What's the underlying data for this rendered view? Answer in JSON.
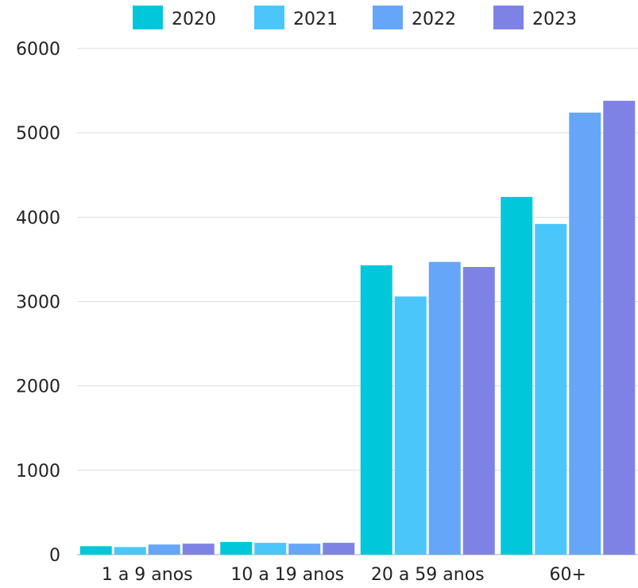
{
  "chart_data": {
    "type": "bar",
    "title": "",
    "xlabel": "",
    "ylabel": "",
    "categories": [
      "1 a 9 anos",
      "10 a 19 anos",
      "20 a 59 anos",
      "60+"
    ],
    "ylim": [
      0,
      6000
    ],
    "yticks": [
      0,
      1000,
      2000,
      3000,
      4000,
      5000,
      6000
    ],
    "grid": true,
    "legend_position": "top",
    "series": [
      {
        "name": "2020",
        "color": "#00C8DA",
        "values": [
          100,
          150,
          3430,
          4240
        ]
      },
      {
        "name": "2021",
        "color": "#4BC6FA",
        "values": [
          90,
          140,
          3060,
          3920
        ]
      },
      {
        "name": "2022",
        "color": "#66A6F8",
        "values": [
          120,
          130,
          3470,
          5240
        ]
      },
      {
        "name": "2023",
        "color": "#7F82E5",
        "values": [
          130,
          140,
          3410,
          5380
        ]
      }
    ]
  }
}
